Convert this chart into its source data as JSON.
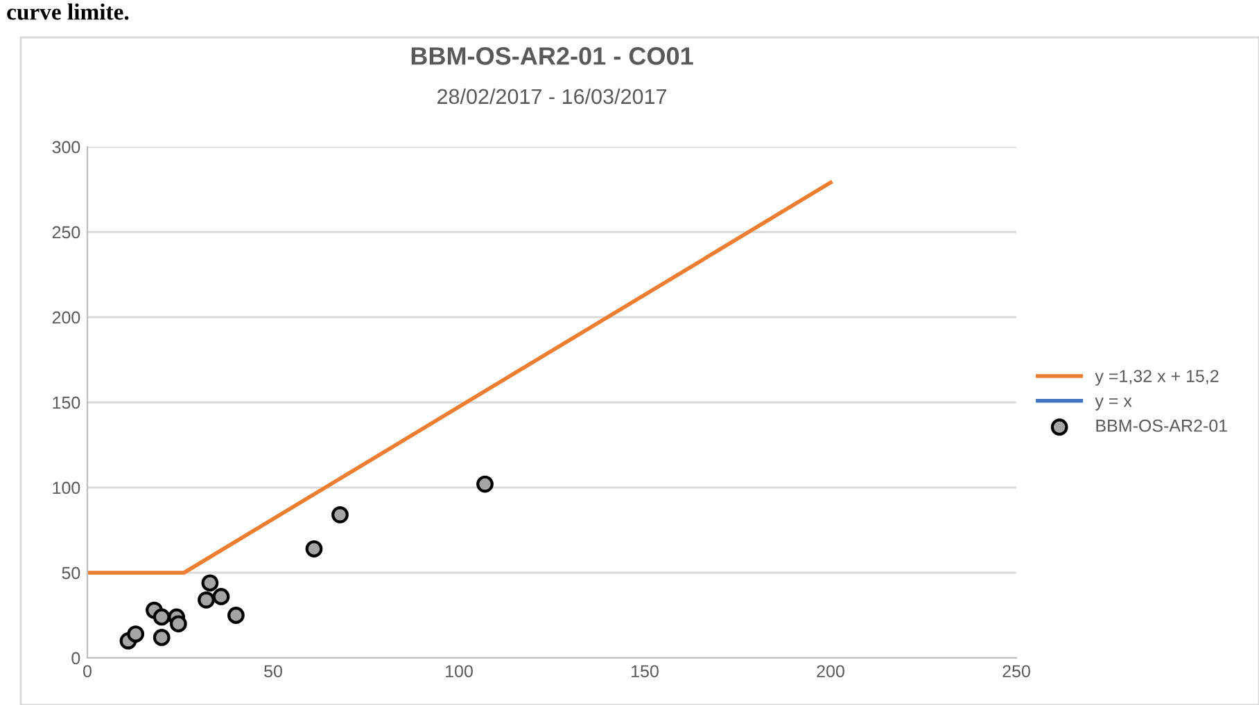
{
  "chart_data": {
    "type": "scatter",
    "title": "BBM-OS-AR2-01 - CO01",
    "subtitle": "28/02/2017 - 16/03/2017",
    "annotations": [
      "curve limite."
    ],
    "series": [
      {
        "name": "y =1,32 x + 15,2",
        "type": "line",
        "color": "#ed7d31",
        "marker": "none",
        "x": [
          0,
          26,
          200
        ],
        "values": [
          50,
          50,
          279
        ]
      },
      {
        "name": "y = x",
        "type": "line",
        "color": "#4472c4",
        "marker": "none"
      },
      {
        "name": "BBM-OS-AR2-01",
        "color": "#a5a5a5",
        "marker": "circle",
        "x": [
          11,
          13,
          18,
          20,
          20,
          24,
          24.5,
          32,
          33,
          36,
          40,
          61,
          68,
          107
        ],
        "values": [
          10,
          14,
          28,
          24,
          12,
          24,
          20,
          34,
          44,
          36,
          25,
          64,
          84,
          102
        ]
      }
    ],
    "xlim": [
      0,
      250
    ],
    "xticks": [
      0,
      50,
      100,
      150,
      200,
      250
    ],
    "ylim": [
      0,
      300
    ],
    "yticks": [
      0,
      50,
      100,
      150,
      200,
      250,
      300
    ],
    "grid": "y",
    "legend": "right"
  }
}
